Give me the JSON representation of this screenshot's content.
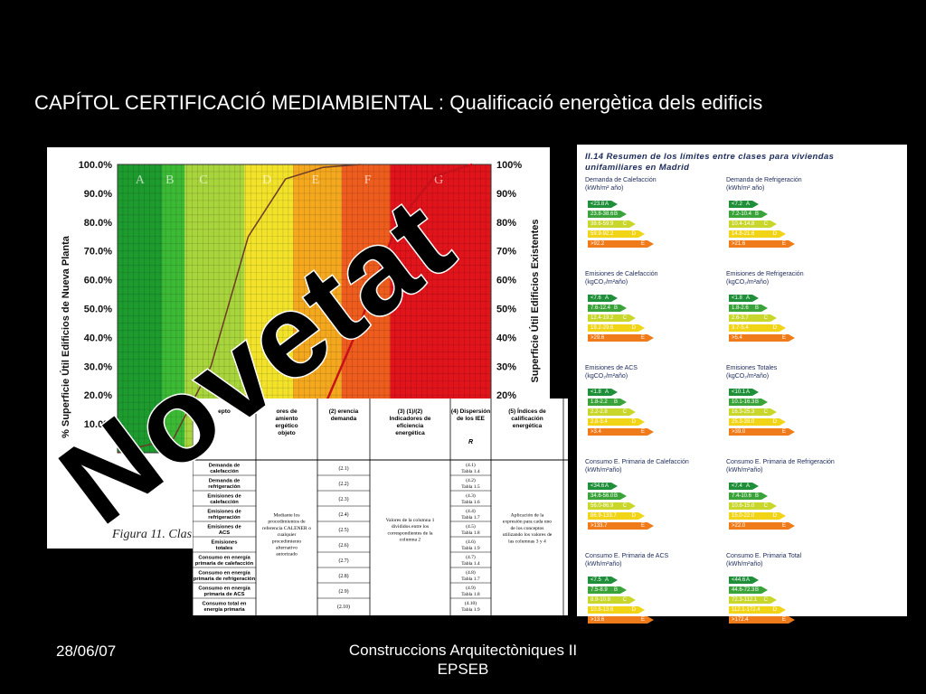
{
  "title": {
    "main": "CAPÍTOL CERTIFICACIÓ MEDIAMBIENTAL",
    "separator": " : ",
    "sub": "Qualificació energètica dels edificis"
  },
  "chart_data": {
    "type": "area",
    "ylim": [
      0,
      100
    ],
    "yticks_left": [
      "100.0%",
      "90.0%",
      "80.0%",
      "70.0%",
      "60.0%",
      "50.0%",
      "40.0%",
      "30.0%",
      "20.0%",
      "10.0%"
    ],
    "yticks_right": [
      "100%",
      "90%",
      "80%",
      "70%",
      "60%",
      "50%",
      "40%",
      "30%",
      "20%"
    ],
    "ylabel_left": "% Superficie Útil Edificios de Nueva Planta",
    "ylabel_right": "Superficie Útil Edificios Existentes",
    "classes": [
      "A",
      "B",
      "C",
      "D",
      "E",
      "F",
      "G"
    ],
    "class_colors": [
      "#1e9b2e",
      "#3dba35",
      "#a8d43c",
      "#f2e22a",
      "#f4a81e",
      "#ee5d1d",
      "#e0141a"
    ],
    "xtick_visible": "0.15",
    "caption": "Figura 11. Clas",
    "series": [
      {
        "name": "Nueva planta",
        "x": [
          0.0,
          0.15,
          0.25,
          0.35,
          0.45,
          0.55,
          0.65
        ],
        "y": [
          0,
          5,
          30,
          75,
          95,
          99,
          100
        ]
      },
      {
        "name": "Existentes",
        "x": [
          0.35,
          0.45,
          0.55,
          0.65,
          0.75,
          0.85,
          0.95
        ],
        "y": [
          0,
          3,
          15,
          45,
          80,
          96,
          100
        ]
      }
    ]
  },
  "table": {
    "headers": [
      "Concepto",
      "Indicadores de comportamiento energético del edificio objeto",
      "(2) Indicadores de referencia",
      "(3) Indicadores de eficiencia energética",
      "(4) Dispersión de los IEE",
      "(5) Índices de calificación energética"
    ],
    "header_short": [
      "epto",
      "ores de amiento ergético objeto",
      "(2) erencia demanda",
      "(3) (1)/(2) Indicadores de eficiencia energética",
      "(4) Dispersión de los IEE",
      "(5) Índices de calificación energética"
    ],
    "col4_sub": "R",
    "rows": [
      {
        "concept": "Demanda de calefacción",
        "ref": "(2.1)",
        "disp": "(4.1) Tabla 1.4"
      },
      {
        "concept": "Demanda de refrigeración",
        "ref": "(2.2)",
        "disp": "(4.2) Tabla 1.5"
      },
      {
        "concept": "Emisiones de calefacción",
        "ref": "(2.3)",
        "disp": "(4.3) Tabla 1.6"
      },
      {
        "concept": "Emisiones de refrigeración",
        "ref": "(2.4)",
        "disp": "(4.4) Tabla 1.7"
      },
      {
        "concept": "Emisiones de ACS",
        "ref": "(2.5)",
        "disp": "(4.5) Tabla 1.8"
      },
      {
        "concept": "Emisiones totales",
        "ref": "(2.6)",
        "disp": "(4.6) Tabla 1.9"
      },
      {
        "concept": "Consumo en energía primaria de calefacción",
        "ref": "(2.7)",
        "disp": "(4.7) Tabla 1.4"
      },
      {
        "concept": "Consumo en energía primaria de refrigeración",
        "ref": "(2.8)",
        "disp": "(4.8) Tabla 1.7"
      },
      {
        "concept": "Consumo en energía primaria de ACS",
        "ref": "(2.9)",
        "disp": "(4.9) Tabla 1.8"
      },
      {
        "concept": "Consumo total en energía primaria",
        "ref": "(2.10)",
        "disp": "(4.10) Tabla 1.9"
      }
    ],
    "col1_note": "Mediante los procedimientos de referencia CALENER o cualquier procedimiento alternativo autorizado",
    "col3_note": "Valores de la columna 1 divididos entre los correspondientes de la columna 2",
    "col5_note": "Aplicación de la expresión para cada uno de los conceptos utilizando los valores de las columnas 3 y 4"
  },
  "right_panel": {
    "title": "II.14  Resumen de los límites entre clases para viviendas unifamiliares en Madrid",
    "blocks": [
      {
        "title": "Demanda de Calefacción",
        "unit": "(kWh/m² año)",
        "bars": [
          "<23.8",
          "23.8-38.6",
          "38.6-59.9",
          "59.9-92.2",
          ">92.2"
        ]
      },
      {
        "title": "Demanda de Refrigeración",
        "unit": "(kWh/m² año)",
        "bars": [
          "<7.2",
          "7.2-10.4",
          "10.4-14.8",
          "14.8-21.6",
          ">21.6"
        ]
      },
      {
        "title": "Emisiones de Calefacción",
        "unit": "(kgCO₂/m²año)",
        "bars": [
          "<7.6",
          "7.6-12.4",
          "12.4-19.2",
          "19.2-29.6",
          ">29.6"
        ]
      },
      {
        "title": "Emisiones de Refrigeración",
        "unit": "(kgCO₂/m²año)",
        "bars": [
          "<1.8",
          "1.8-2.6",
          "2.6-3.7",
          "3.7-5.4",
          ">5.4"
        ]
      },
      {
        "title": "Emisiones de ACS",
        "unit": "(kgCO₂/m²año)",
        "bars": [
          "<1.8",
          "1.8-2.2",
          "2.2-2.8",
          "2.8-3.4",
          ">3.4"
        ]
      },
      {
        "title": "Emisiones Totales",
        "unit": "(kgCO₂/m²año)",
        "bars": [
          "<10.1",
          "10.1-16.3",
          "16.3-25.3",
          "25.3-39.0",
          ">39.0"
        ]
      },
      {
        "title": "Consumo E. Primaria de Calefacción",
        "unit": "(kWh/m²año)",
        "bars": [
          "<34.6",
          "34.6-56.0",
          "56.0-86.9",
          "86.9-133.7",
          ">133.7"
        ]
      },
      {
        "title": "Consumo E. Primaria de Refrigeración",
        "unit": "(kWh/m²año)",
        "bars": [
          "<7.4",
          "7.4-10.6",
          "10.6-15.0",
          "15.0-22.0",
          ">22.0"
        ]
      },
      {
        "title": "Consumo E. Primaria de ACS",
        "unit": "(kWh/m²año)",
        "bars": [
          "<7.5",
          "7.5-8.9",
          "8.9-10.8",
          "10.8-13.6",
          ">13.6"
        ]
      },
      {
        "title": "Consumo E. Primaria Total",
        "unit": "(kWh/m²año)",
        "bars": [
          "<44.6",
          "44.6-72.3",
          "72.3-112.1",
          "112.1-172.4",
          ">172.4"
        ]
      }
    ],
    "letters": [
      "A",
      "B",
      "C",
      "D",
      "E"
    ],
    "colors": [
      "#1f8f3a",
      "#3aa33a",
      "#c9d62b",
      "#f1d416",
      "#f07b1a"
    ]
  },
  "overlay_text": "Novetat",
  "footer": {
    "date": "28/06/07",
    "center_line1": "Construccions Arquitectòniques II",
    "center_line2": "EPSEB"
  }
}
